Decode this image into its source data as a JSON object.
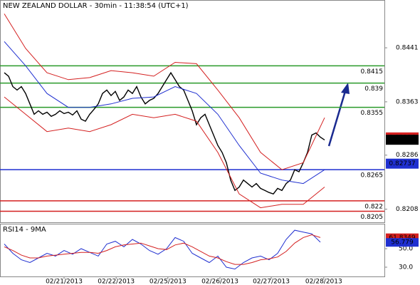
{
  "chart_data": {
    "type": "line",
    "title": "NEW ZEALAND DOLLAR - 30min - 11:38:54 (UTC+1)",
    "xlim": [
      -1,
      89
    ],
    "xticks": [
      {
        "value": 14,
        "label": "02/21/2013"
      },
      {
        "value": 26.2,
        "label": "02/22/2013"
      },
      {
        "value": 38.3,
        "label": "02/25/2013"
      },
      {
        "value": 50.5,
        "label": "02/26/2013"
      },
      {
        "value": 62.5,
        "label": "02/27/2013"
      },
      {
        "value": 74.8,
        "label": "02/28/2013"
      }
    ],
    "ylim": [
      0.8188,
      0.851
    ],
    "yticks": [
      0.8208,
      0.8286,
      0.8363,
      0.8441
    ],
    "series": [
      {
        "name": "Price",
        "color": "#000000",
        "x": [
          0,
          1,
          2,
          3,
          4,
          5,
          6,
          7,
          8,
          9,
          10,
          11,
          12,
          13,
          14,
          15,
          16,
          17,
          18,
          19,
          20,
          21,
          22,
          23,
          24,
          25,
          26,
          27,
          28,
          29,
          30,
          31,
          32,
          33,
          34,
          35,
          36,
          37,
          38,
          39,
          40,
          41,
          42,
          43,
          44,
          45,
          46,
          47,
          48,
          49,
          50,
          51,
          52,
          53,
          54,
          55,
          56,
          57,
          58,
          59,
          60,
          61,
          62,
          63,
          64,
          65,
          66,
          67,
          68,
          69,
          70,
          71,
          72,
          73,
          74,
          75
        ],
        "values": [
          0.8405,
          0.84,
          0.8385,
          0.838,
          0.8385,
          0.8375,
          0.836,
          0.8345,
          0.835,
          0.8345,
          0.8348,
          0.8342,
          0.8345,
          0.835,
          0.8346,
          0.8348,
          0.8344,
          0.835,
          0.8338,
          0.8335,
          0.8345,
          0.8352,
          0.836,
          0.8375,
          0.838,
          0.8372,
          0.8378,
          0.8365,
          0.837,
          0.838,
          0.8375,
          0.8385,
          0.837,
          0.836,
          0.8365,
          0.8368,
          0.8375,
          0.8385,
          0.8395,
          0.8405,
          0.8395,
          0.8385,
          0.838,
          0.8365,
          0.835,
          0.833,
          0.834,
          0.8345,
          0.833,
          0.8315,
          0.83,
          0.829,
          0.8275,
          0.825,
          0.8235,
          0.824,
          0.825,
          0.8245,
          0.824,
          0.8245,
          0.8238,
          0.8235,
          0.8232,
          0.823,
          0.8238,
          0.8235,
          0.8245,
          0.825,
          0.8265,
          0.8262,
          0.8275,
          0.829,
          0.8315,
          0.8318,
          0.8312,
          0.8308
        ]
      },
      {
        "name": "Upper band",
        "color": "#d42020",
        "x": [
          0,
          5,
          10,
          15,
          20,
          25,
          30,
          35,
          40,
          45,
          50,
          55,
          60,
          65,
          70,
          75
        ],
        "values": [
          0.849,
          0.844,
          0.8405,
          0.8395,
          0.8398,
          0.8408,
          0.8405,
          0.84,
          0.842,
          0.8418,
          0.838,
          0.834,
          0.829,
          0.8265,
          0.8275,
          0.834
        ]
      },
      {
        "name": "Lower band",
        "color": "#d42020",
        "x": [
          0,
          5,
          10,
          15,
          20,
          25,
          30,
          35,
          40,
          45,
          50,
          55,
          60,
          65,
          70,
          75
        ],
        "values": [
          0.837,
          0.8345,
          0.832,
          0.8325,
          0.832,
          0.833,
          0.8345,
          0.834,
          0.8345,
          0.8335,
          0.829,
          0.823,
          0.821,
          0.8215,
          0.8215,
          0.824
        ]
      },
      {
        "name": "MA",
        "color": "#1f2fd0",
        "x": [
          0,
          5,
          10,
          15,
          20,
          25,
          30,
          35,
          40,
          45,
          50,
          55,
          60,
          65,
          70,
          75
        ],
        "values": [
          0.845,
          0.8415,
          0.8375,
          0.8355,
          0.8355,
          0.836,
          0.8368,
          0.837,
          0.8385,
          0.8375,
          0.8345,
          0.83,
          0.826,
          0.825,
          0.8245,
          0.8265
        ]
      }
    ],
    "levels": [
      {
        "value": 0.8415,
        "color": "#2a9a2a"
      },
      {
        "value": 0.839,
        "color": "#2a9a2a"
      },
      {
        "value": 0.8355,
        "color": "#2a9a2a"
      },
      {
        "value": 0.8265,
        "color": "#1f2fd0"
      },
      {
        "value": 0.822,
        "color": "#d42020"
      },
      {
        "value": 0.8205,
        "color": "#d42020"
      }
    ],
    "tags": [
      {
        "value": 0.83116,
        "color": "#d42020"
      },
      {
        "value": 0.83082,
        "color": "#000000"
      },
      {
        "value": 0.82737,
        "color": "#1f2fd0"
      }
    ],
    "rsi": {
      "title": "RSI14 - 9MA",
      "ylim": [
        20,
        76.2
      ],
      "yticks": [
        {
          "value": 30,
          "label": "30.0"
        },
        {
          "value": 50,
          "label": "50.0"
        }
      ],
      "series": [
        {
          "name": "RSI14",
          "color": "#1f2fd0",
          "x": [
            0,
            2,
            4,
            6,
            8,
            10,
            12,
            14,
            16,
            18,
            20,
            22,
            24,
            26,
            28,
            30,
            32,
            34,
            36,
            38,
            40,
            42,
            44,
            46,
            48,
            50,
            52,
            54,
            56,
            58,
            60,
            62,
            64,
            66,
            68,
            70,
            72,
            74
          ],
          "values": [
            55,
            45,
            38,
            35,
            40,
            45,
            42,
            48,
            44,
            50,
            46,
            42,
            55,
            58,
            52,
            60,
            55,
            48,
            44,
            50,
            62,
            58,
            45,
            40,
            35,
            42,
            30,
            28,
            35,
            40,
            42,
            38,
            45,
            60,
            70,
            68,
            66,
            57
          ]
        },
        {
          "name": "9MA",
          "color": "#d42020",
          "x": [
            0,
            2,
            4,
            6,
            8,
            10,
            12,
            14,
            16,
            18,
            20,
            22,
            24,
            26,
            28,
            30,
            32,
            34,
            36,
            38,
            40,
            42,
            44,
            46,
            48,
            50,
            52,
            54,
            56,
            58,
            60,
            62,
            64,
            66,
            68,
            70,
            72,
            74
          ],
          "values": [
            52,
            48,
            43,
            40,
            40,
            42,
            43,
            44,
            45,
            46,
            46,
            45,
            48,
            52,
            54,
            55,
            56,
            53,
            50,
            49,
            54,
            56,
            52,
            47,
            42,
            40,
            36,
            33,
            33,
            35,
            38,
            39,
            41,
            47,
            56,
            62,
            65,
            62
          ]
        }
      ],
      "tags": [
        {
          "value": 61.8349,
          "color": "#d42020"
        },
        {
          "value": 56.779,
          "color": "#1f2fd0"
        }
      ]
    }
  }
}
